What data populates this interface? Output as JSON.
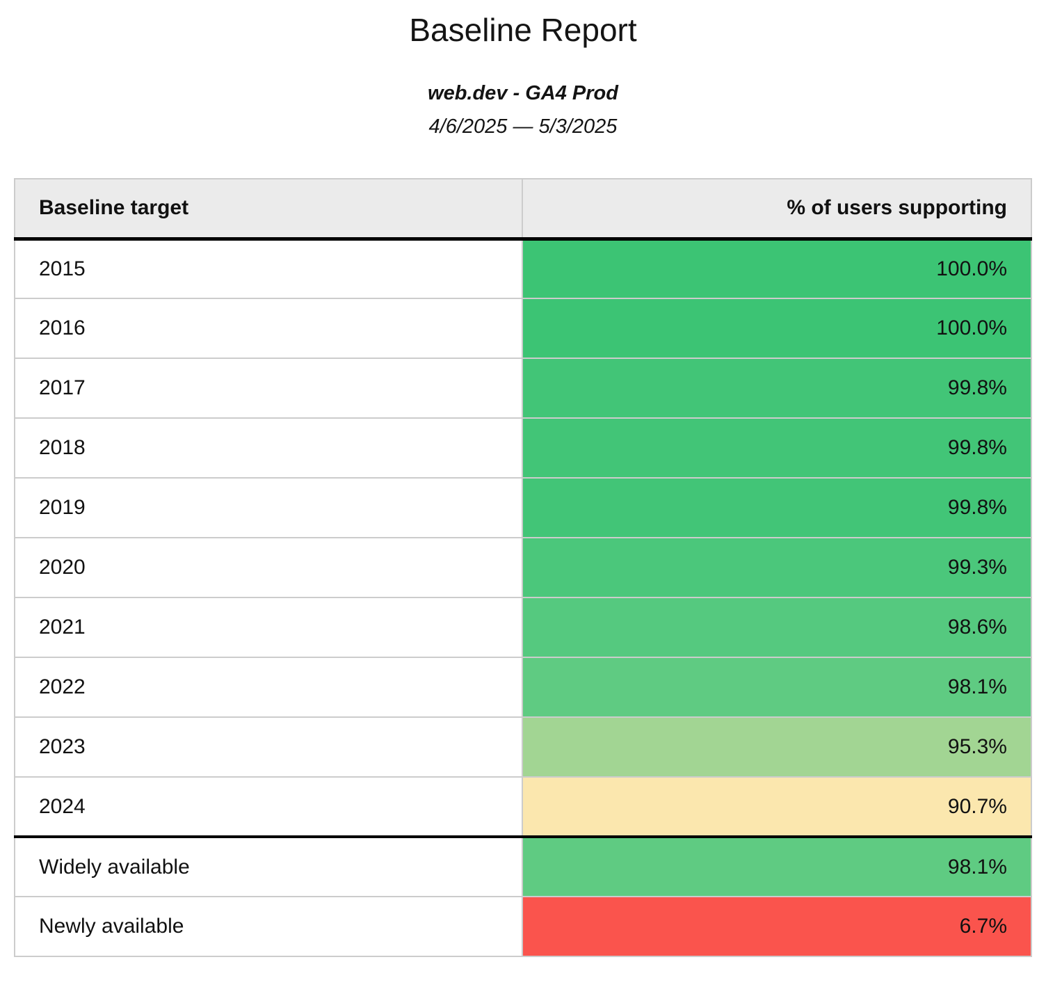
{
  "report": {
    "title": "Baseline Report",
    "property": "web.dev - GA4 Prod",
    "date_range": "4/6/2025 — 5/3/2025"
  },
  "table": {
    "columns": [
      "Baseline target",
      "% of users supporting"
    ],
    "rows": [
      {
        "target": "2015",
        "percent": "100.0%",
        "color": "#3cc474",
        "group": "baseline-year"
      },
      {
        "target": "2016",
        "percent": "100.0%",
        "color": "#3cc474",
        "group": "baseline-year"
      },
      {
        "target": "2017",
        "percent": "99.8%",
        "color": "#42c577",
        "group": "baseline-year"
      },
      {
        "target": "2018",
        "percent": "99.8%",
        "color": "#42c577",
        "group": "baseline-year"
      },
      {
        "target": "2019",
        "percent": "99.8%",
        "color": "#42c577",
        "group": "baseline-year"
      },
      {
        "target": "2020",
        "percent": "99.3%",
        "color": "#4bc77b",
        "group": "baseline-year"
      },
      {
        "target": "2021",
        "percent": "98.6%",
        "color": "#55c97f",
        "group": "baseline-year"
      },
      {
        "target": "2022",
        "percent": "98.1%",
        "color": "#5fcb82",
        "group": "baseline-year"
      },
      {
        "target": "2023",
        "percent": "95.3%",
        "color": "#a2d593",
        "group": "baseline-year"
      },
      {
        "target": "2024",
        "percent": "90.7%",
        "color": "#fbe7ae",
        "group": "baseline-year"
      },
      {
        "target": "Widely available",
        "percent": "98.1%",
        "color": "#5fcb82",
        "group": "availability"
      },
      {
        "target": "Newly available",
        "percent": "6.7%",
        "color": "#fa544d",
        "group": "availability"
      }
    ]
  },
  "colors": {
    "header_background": "#ebebeb",
    "thin_border": "#cccccc",
    "thick_border": "#000000",
    "high_support_green": "#3cc474",
    "mid_support_yellow": "#fbe7ae",
    "low_support_red": "#fa544d"
  },
  "chart_data": {
    "type": "table",
    "title": "Baseline Report",
    "subtitle": "web.dev - GA4 Prod",
    "date_range": "4/6/2025 — 5/3/2025",
    "columns": [
      "Baseline target",
      "% of users supporting"
    ],
    "categories": [
      "2015",
      "2016",
      "2017",
      "2018",
      "2019",
      "2020",
      "2021",
      "2022",
      "2023",
      "2024",
      "Widely available",
      "Newly available"
    ],
    "values": [
      100.0,
      100.0,
      99.8,
      99.8,
      99.8,
      99.3,
      98.6,
      98.1,
      95.3,
      90.7,
      98.1,
      6.7
    ],
    "value_unit": "%",
    "layout_hints": {
      "value_alignment": "right",
      "heatmap_scale": "red-yellow-green",
      "section_break_after": "2024"
    }
  }
}
